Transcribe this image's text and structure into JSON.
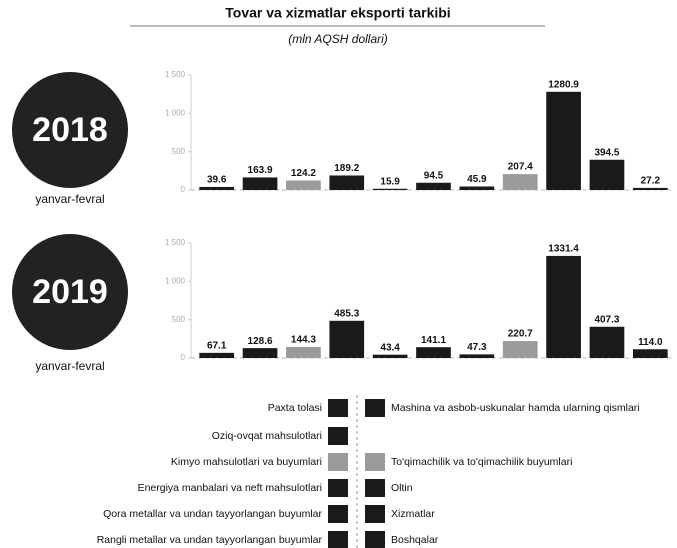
{
  "header": {
    "title": "Tovar va xizmatlar eksporti tarkibi",
    "subtitle": "(mln AQSH dollari)"
  },
  "legend": {
    "items": [
      {
        "name": "Paxta tolasi",
        "color": "#1a1a1a"
      },
      {
        "name": "Oziq-ovqat mahsulotlari",
        "color": "#1a1a1a"
      },
      {
        "name": "Kimyo mahsulotlari va buyumlari",
        "color": "#9a9a9a"
      },
      {
        "name": "Energiya manbalari va neft mahsulotlari",
        "color": "#1a1a1a"
      },
      {
        "name": "Qora metallar va undan tayyorlangan buyumlar",
        "color": "#1a1a1a"
      },
      {
        "name": "Rangli metallar va undan tayyorlangan buyumlar",
        "color": "#1a1a1a"
      },
      {
        "name": "Mashina va asbob-uskunalar hamda ularning qismlari",
        "color": "#1a1a1a"
      },
      {
        "name": "To'qimachilik va to'qimachilik buyumlari",
        "color": "#9a9a9a"
      },
      {
        "name": "Oltin",
        "color": "#1a1a1a"
      },
      {
        "name": "Xizmatlar",
        "color": "#1a1a1a"
      },
      {
        "name": "Boshqalar",
        "color": "#1a1a1a"
      }
    ]
  },
  "chart_data": [
    {
      "type": "bar",
      "badge": "2018",
      "caption": "yanvar-fevral",
      "values": [
        39.6,
        163.9,
        124.2,
        189.2,
        15.9,
        94.5,
        45.9,
        207.4,
        1280.9,
        394.5,
        27.2
      ],
      "value_labels": [
        "39.6",
        "163.9",
        "124.2",
        "189.2",
        "15.9",
        "94.5",
        "45.9",
        "207.4",
        "1280.9",
        "394.5",
        "27.2"
      ],
      "ylim": [
        0,
        1500
      ],
      "yticks": [
        0,
        500,
        {
          "value": 1000,
          "label": "1 000"
        },
        {
          "value": 1500,
          "label": "1 500"
        }
      ]
    },
    {
      "type": "bar",
      "badge": "2019",
      "caption": "yanvar-fevral",
      "values": [
        67.1,
        128.6,
        144.3,
        485.3,
        43.4,
        141.1,
        47.3,
        220.7,
        1331.4,
        407.3,
        114.0
      ],
      "value_labels": [
        "67.1",
        "128.6",
        "144.3",
        "485.3",
        "43.4",
        "141.1",
        "47.3",
        "220.7",
        "1331.4",
        "407.3",
        "114.0"
      ],
      "ylim": [
        0,
        1500
      ],
      "yticks": [
        0,
        500,
        {
          "value": 1000,
          "label": "1 000"
        },
        {
          "value": 1500,
          "label": "1 500"
        }
      ]
    }
  ]
}
